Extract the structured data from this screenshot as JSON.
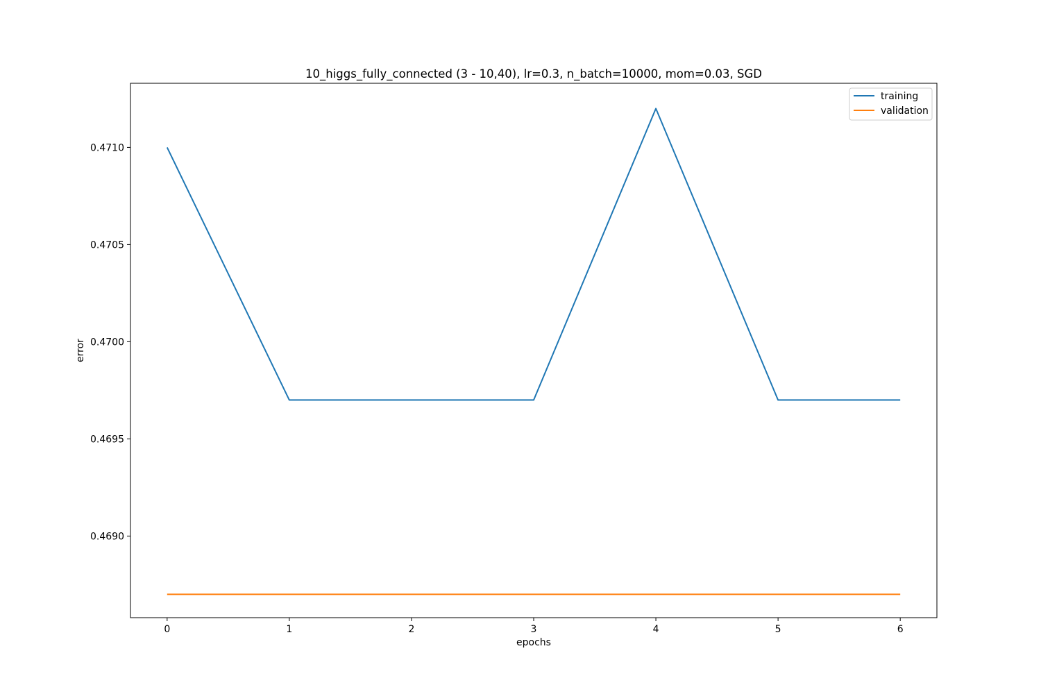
{
  "chart_data": {
    "type": "line",
    "title": "10_higgs_fully_connected (3 - 10,40), lr=0.3, n_batch=10000, mom=0.03, SGD",
    "xlabel": "epochs",
    "ylabel": "error",
    "x": [
      0,
      1,
      2,
      3,
      4,
      5,
      6
    ],
    "xticks": [
      "0",
      "1",
      "2",
      "3",
      "4",
      "5",
      "6"
    ],
    "yticks": [
      "0.4690",
      "0.4695",
      "0.4700",
      "0.4705",
      "0.4710"
    ],
    "xlim": [
      -0.3,
      6.3
    ],
    "ylim": [
      0.46858,
      0.47133
    ],
    "grid": false,
    "legend_position": "upper right",
    "series": [
      {
        "name": "training",
        "color": "#1f77b4",
        "values": [
          0.471,
          0.4697,
          0.4697,
          0.4697,
          0.4712,
          0.4697,
          0.4697
        ]
      },
      {
        "name": "validation",
        "color": "#ff7f0e",
        "values": [
          0.4687,
          0.4687,
          0.4687,
          0.4687,
          0.4687,
          0.4687,
          0.4687
        ]
      }
    ]
  }
}
